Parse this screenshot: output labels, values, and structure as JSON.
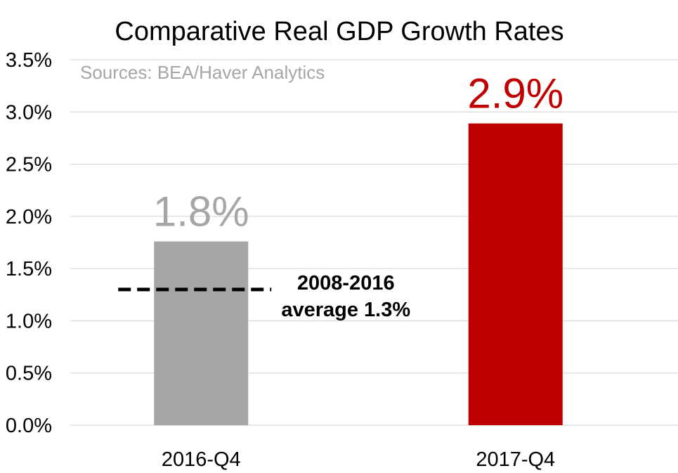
{
  "chart_data": {
    "type": "bar",
    "title": "Comparative Real GDP Growth Rates",
    "source": "Sources: BEA/Haver Analytics",
    "categories": [
      "2016-Q4",
      "2017-Q4"
    ],
    "values": [
      1.76,
      2.89
    ],
    "data_labels": [
      "1.8%",
      "2.9%"
    ],
    "bar_colors": [
      "#a6a6a6",
      "#c00000"
    ],
    "data_label_colors": [
      "#a6a6a6",
      "#c00000"
    ],
    "ylim": [
      0,
      3.5
    ],
    "y_ticks": [
      0,
      0.5,
      1.0,
      1.5,
      2.0,
      2.5,
      3.0,
      3.5
    ],
    "y_tick_labels": [
      "0.0%",
      "0.5%",
      "1.0%",
      "1.5%",
      "2.0%",
      "2.5%",
      "3.0%",
      "3.5%"
    ],
    "grid": true,
    "legend": "none",
    "reference_line": {
      "value": 1.3,
      "category": "2016-Q4",
      "style": "dashed",
      "color": "#000000",
      "label_lines": [
        "2008-2016",
        "average 1.3%"
      ]
    }
  }
}
